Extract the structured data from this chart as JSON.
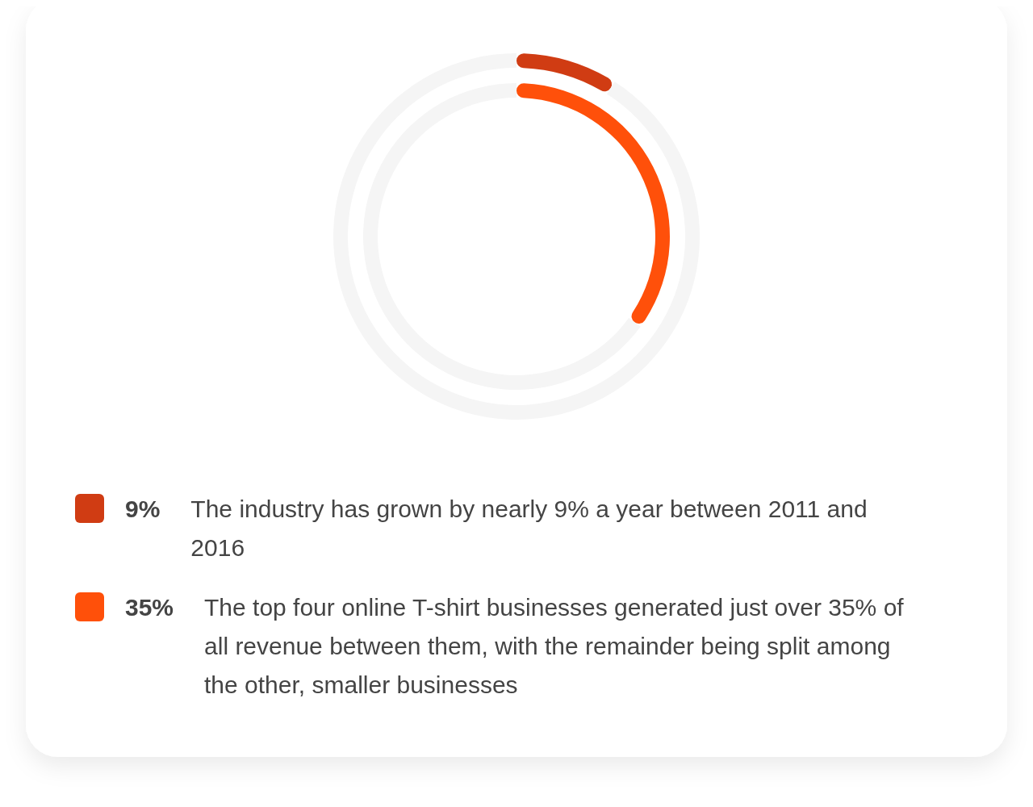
{
  "chart_data": [
    {
      "type": "donut",
      "categories": [
        "9%",
        null
      ],
      "values": [
        9,
        91
      ],
      "colors": [
        "#d03c13",
        "#f5f5f5"
      ],
      "legend": "bottom",
      "annotations": [
        "The industry has grown by nearly 9% a year between 2011 and 2016"
      ]
    },
    {
      "type": "donut",
      "categories": [
        "35%",
        null
      ],
      "values": [
        35,
        65
      ],
      "colors": [
        "#ff500a",
        "#f5f5f5"
      ],
      "legend": "bottom",
      "annotations": [
        "The top four online T-shirt businesses generated just over 35% of all revenue between them, with the remainder being split among the other, smaller businesses"
      ]
    }
  ]
}
